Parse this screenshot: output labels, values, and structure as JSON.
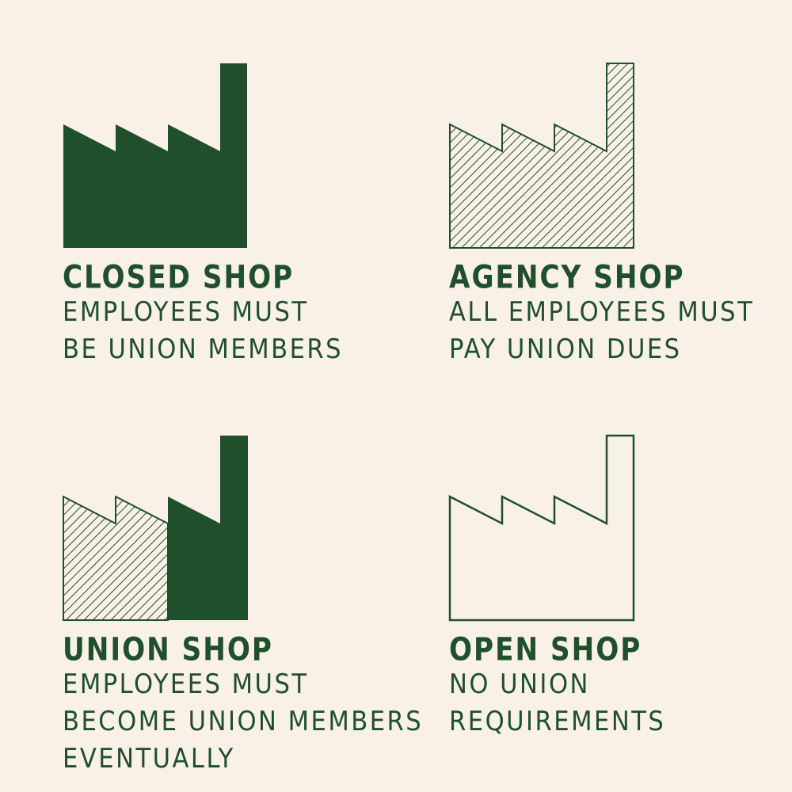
{
  "colors": {
    "background": "#f9f1e7",
    "green": "#1f4f2b"
  },
  "panels": [
    {
      "id": "closed-shop",
      "title": "CLOSED SHOP",
      "description_lines": [
        "EMPLOYEES MUST",
        "BE UNION MEMBERS"
      ],
      "icon": "factory-solid-icon"
    },
    {
      "id": "agency-shop",
      "title": "AGENCY SHOP",
      "description_lines": [
        "ALL EMPLOYEES MUST",
        "PAY UNION DUES"
      ],
      "icon": "factory-hatched-icon"
    },
    {
      "id": "union-shop",
      "title": "UNION SHOP",
      "description_lines": [
        "EMPLOYEES MUST",
        "BECOME UNION MEMBERS",
        "EVENTUALLY"
      ],
      "icon": "factory-half-hatched-half-solid-icon"
    },
    {
      "id": "open-shop",
      "title": "OPEN SHOP",
      "description_lines": [
        "NO UNION",
        "REQUIREMENTS"
      ],
      "icon": "factory-outline-icon"
    }
  ]
}
